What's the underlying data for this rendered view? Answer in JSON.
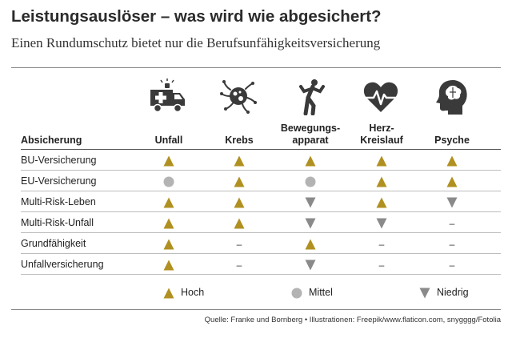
{
  "title": "Leistungsauslöser – was wird wie abgesichert?",
  "subtitle": "Einen Rundumschutz bietet nur die Berufsunfähigkeitsversicherung",
  "header": {
    "first_column": "Absicherung",
    "columns": [
      {
        "label": "Unfall",
        "icon": "ambulance-icon"
      },
      {
        "label": "Krebs",
        "icon": "cancer-cell-icon"
      },
      {
        "label": "Bewegungs-\napparat",
        "icon": "person-movement-icon"
      },
      {
        "label": "Herz-\nKreislauf",
        "icon": "heart-rate-icon"
      },
      {
        "label": "Psyche",
        "icon": "head-brain-icon"
      }
    ]
  },
  "rows": [
    {
      "label": "BU-Versicherung",
      "values": [
        "hoch",
        "hoch",
        "hoch",
        "hoch",
        "hoch"
      ]
    },
    {
      "label": "EU-Versicherung",
      "values": [
        "mittel",
        "hoch",
        "mittel",
        "hoch",
        "hoch"
      ]
    },
    {
      "label": "Multi-Risk-Leben",
      "values": [
        "hoch",
        "hoch",
        "niedrig",
        "hoch",
        "niedrig"
      ]
    },
    {
      "label": "Multi-Risk-Unfall",
      "values": [
        "hoch",
        "hoch",
        "niedrig",
        "niedrig",
        "none"
      ]
    },
    {
      "label": "Grundfähigkeit",
      "values": [
        "hoch",
        "none",
        "hoch",
        "none",
        "none"
      ]
    },
    {
      "label": "Unfallversicherung",
      "values": [
        "hoch",
        "none",
        "niedrig",
        "none",
        "none"
      ]
    }
  ],
  "legend": [
    {
      "key": "hoch",
      "label": "Hoch"
    },
    {
      "key": "mittel",
      "label": "Mittel"
    },
    {
      "key": "niedrig",
      "label": "Niedrig"
    }
  ],
  "none_symbol": "–",
  "colors": {
    "hoch": "#b09020",
    "mittel": "#b3b3b3",
    "niedrig": "#8a8a8a",
    "icon": "#3a3a3a"
  },
  "source": "Quelle: Franke und Bornberg • Illustrationen: Freepik/www.flaticon.com, snygggg/Fotolia"
}
